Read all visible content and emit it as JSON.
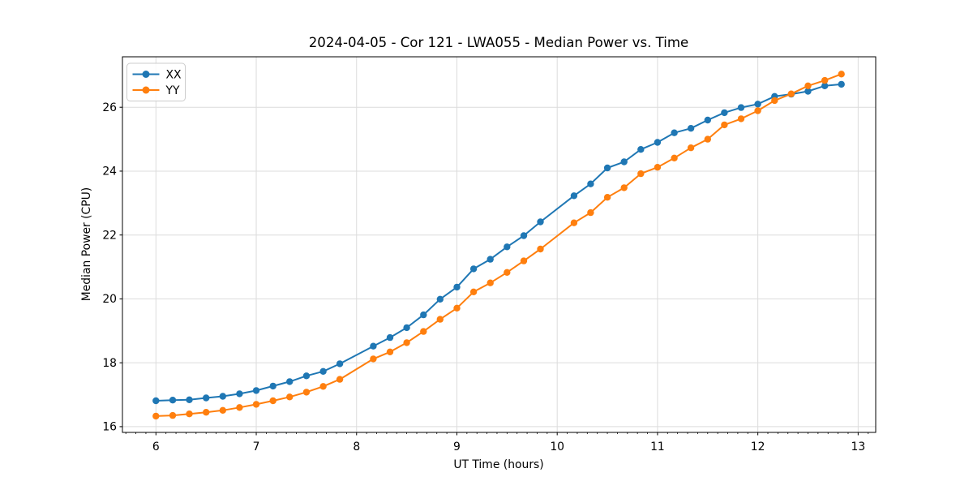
{
  "chart_data": {
    "type": "line",
    "title": "2024-04-05 - Cor 121 - LWA055 - Median Power vs. Time",
    "xlabel": "UT Time (hours)",
    "ylabel": "Median Power (CPU)",
    "xlim": [
      5.666,
      13.175
    ],
    "ylim": [
      15.82,
      27.58
    ],
    "xticks": [
      6,
      7,
      8,
      9,
      10,
      11,
      12,
      13
    ],
    "yticks": [
      16,
      18,
      20,
      22,
      24,
      26
    ],
    "x_minor_step": 0.1,
    "grid": true,
    "grid_color": "#dcdcdc",
    "spine_color": "#000000",
    "legend_position": "upper-left",
    "series": [
      {
        "name": "XX",
        "color": "#1f77b4",
        "marker": "circle",
        "x": [
          6.0,
          6.167,
          6.333,
          6.5,
          6.667,
          6.833,
          7.0,
          7.167,
          7.333,
          7.5,
          7.667,
          7.833,
          8.167,
          8.333,
          8.5,
          8.667,
          8.833,
          9.0,
          9.167,
          9.333,
          9.5,
          9.667,
          9.833,
          10.167,
          10.333,
          10.5,
          10.667,
          10.833,
          11.0,
          11.167,
          11.333,
          11.5,
          11.667,
          11.833,
          12.0,
          12.167,
          12.333,
          12.5,
          12.667,
          12.833
        ],
        "y": [
          16.81,
          16.83,
          16.84,
          16.9,
          16.95,
          17.03,
          17.13,
          17.27,
          17.41,
          17.59,
          17.73,
          17.97,
          18.52,
          18.79,
          19.1,
          19.5,
          19.99,
          20.37,
          20.94,
          21.24,
          21.63,
          21.98,
          22.41,
          23.23,
          23.6,
          24.1,
          24.29,
          24.68,
          24.9,
          25.2,
          25.34,
          25.6,
          25.83,
          25.99,
          26.1,
          26.34,
          26.41,
          26.5,
          26.67,
          26.72
        ]
      },
      {
        "name": "YY",
        "color": "#ff7f0e",
        "marker": "circle",
        "x": [
          6.0,
          6.167,
          6.333,
          6.5,
          6.667,
          6.833,
          7.0,
          7.167,
          7.333,
          7.5,
          7.667,
          7.833,
          8.167,
          8.333,
          8.5,
          8.667,
          8.833,
          9.0,
          9.167,
          9.333,
          9.5,
          9.667,
          9.833,
          10.167,
          10.333,
          10.5,
          10.667,
          10.833,
          11.0,
          11.167,
          11.333,
          11.5,
          11.667,
          11.833,
          12.0,
          12.167,
          12.333,
          12.5,
          12.667,
          12.833
        ],
        "y": [
          16.33,
          16.35,
          16.4,
          16.45,
          16.51,
          16.6,
          16.7,
          16.81,
          16.93,
          17.08,
          17.26,
          17.48,
          18.12,
          18.34,
          18.63,
          18.98,
          19.36,
          19.71,
          20.22,
          20.5,
          20.83,
          21.19,
          21.56,
          22.38,
          22.7,
          23.18,
          23.48,
          23.92,
          24.12,
          24.41,
          24.73,
          25.0,
          25.45,
          25.64,
          25.89,
          26.21,
          26.42,
          26.67,
          26.84,
          27.04
        ]
      }
    ]
  }
}
